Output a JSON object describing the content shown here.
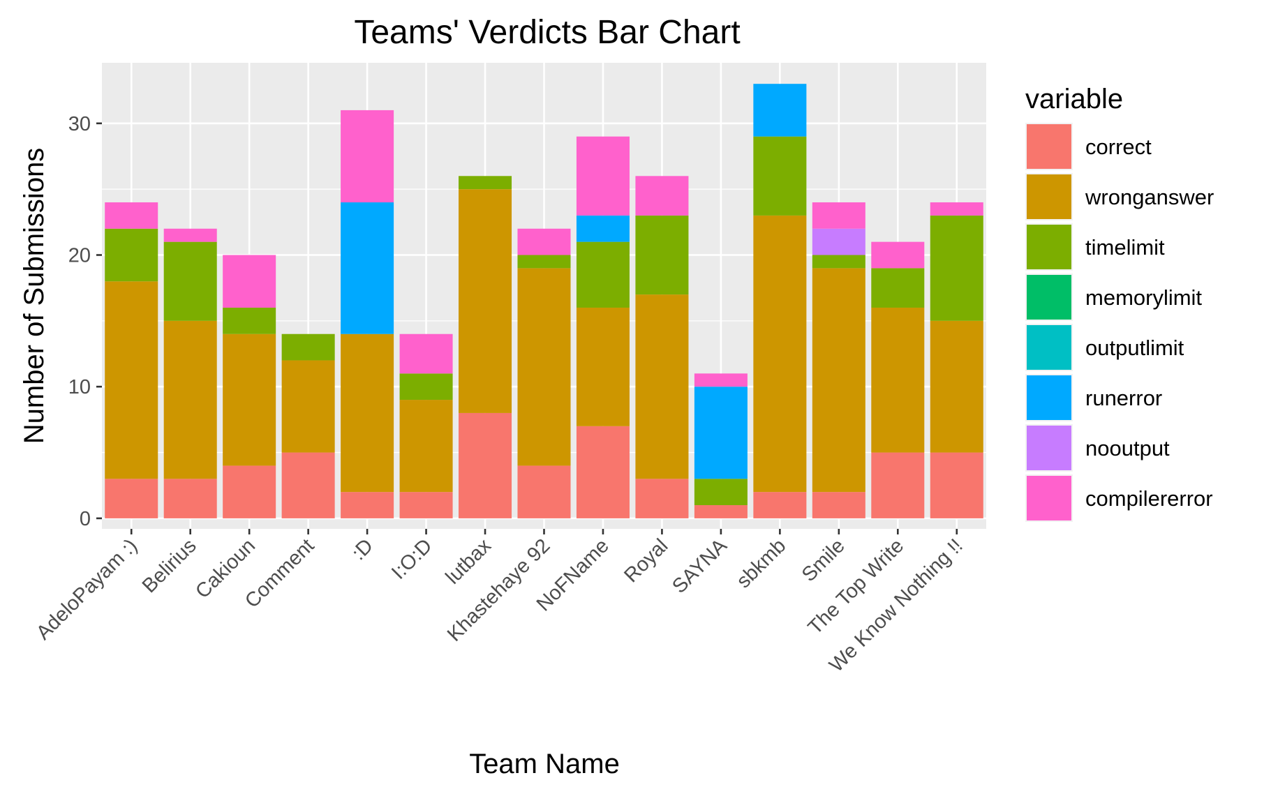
{
  "chart_data": {
    "type": "bar",
    "stacked": true,
    "title": "Teams' Verdicts Bar Chart",
    "xlabel": "Team Name",
    "ylabel": "Number of Submissions",
    "ylim": [
      -0.8,
      34.6
    ],
    "yticks": [
      0,
      10,
      20,
      30
    ],
    "grid": true,
    "legend_placement": "right",
    "legend_title": "variable",
    "categories": [
      "AdeloPayam :)",
      "Belirius",
      "Cakioun",
      "Comment",
      ":D",
      "I:O:D",
      "lutbax",
      "Khastehaye 92",
      "NoFName",
      "Royal",
      "SAYNA",
      "sbkmb",
      "Smile",
      "The Top Write",
      "We Know Nothing !!"
    ],
    "series": [
      {
        "name": "correct",
        "color": "#F8766D",
        "values": [
          3,
          3,
          4,
          5,
          2,
          2,
          8,
          4,
          7,
          3,
          1,
          2,
          2,
          5,
          5
        ]
      },
      {
        "name": "wronganswer",
        "color": "#CD9600",
        "values": [
          15,
          12,
          10,
          7,
          12,
          7,
          17,
          15,
          9,
          14,
          0,
          21,
          17,
          11,
          10
        ]
      },
      {
        "name": "timelimit",
        "color": "#7CAE00",
        "values": [
          4,
          6,
          2,
          2,
          0,
          2,
          1,
          1,
          5,
          6,
          2,
          6,
          1,
          3,
          8
        ]
      },
      {
        "name": "memorylimit",
        "color": "#00BE67",
        "values": [
          0,
          0,
          0,
          0,
          0,
          0,
          0,
          0,
          0,
          0,
          0,
          0,
          0,
          0,
          0
        ]
      },
      {
        "name": "outputlimit",
        "color": "#00BFC4",
        "values": [
          0,
          0,
          0,
          0,
          0,
          0,
          0,
          0,
          0,
          0,
          0,
          0,
          0,
          0,
          0
        ]
      },
      {
        "name": "runerror",
        "color": "#00A9FF",
        "values": [
          0,
          0,
          0,
          0,
          10,
          0,
          0,
          0,
          2,
          0,
          7,
          4,
          0,
          0,
          0
        ]
      },
      {
        "name": "nooutput",
        "color": "#C77CFF",
        "values": [
          0,
          0,
          0,
          0,
          0,
          0,
          0,
          0,
          0,
          0,
          0,
          0,
          2,
          0,
          0
        ]
      },
      {
        "name": "compilererror",
        "color": "#FF61CC",
        "values": [
          2,
          1,
          4,
          0,
          7,
          3,
          0,
          2,
          6,
          3,
          1,
          0,
          2,
          2,
          1
        ]
      }
    ],
    "colors": {
      "panel_background": "#EBEBEB",
      "grid": "#FFFFFF",
      "tick": "#333333"
    }
  }
}
